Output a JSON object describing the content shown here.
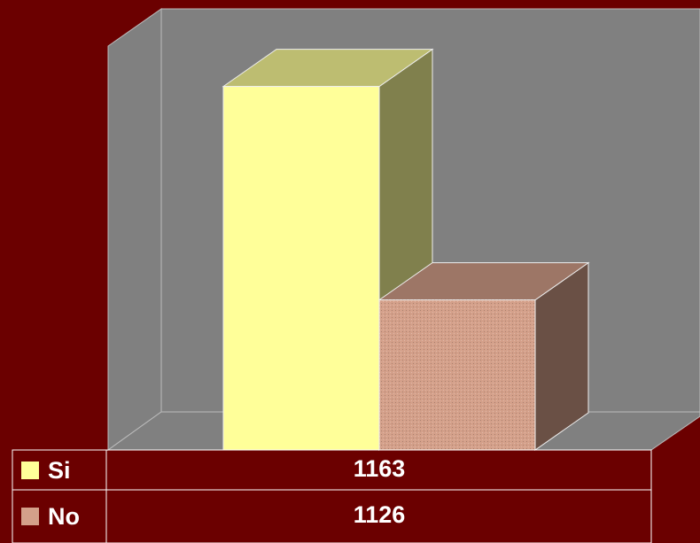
{
  "chart_data": {
    "type": "bar3d",
    "series": [
      {
        "name": "Si",
        "color": "#ffff99",
        "values": [
          1163
        ]
      },
      {
        "name": "No",
        "color": "#d4a08a",
        "values": [
          1126
        ]
      }
    ],
    "ylim": [
      1100,
      1170
    ]
  }
}
